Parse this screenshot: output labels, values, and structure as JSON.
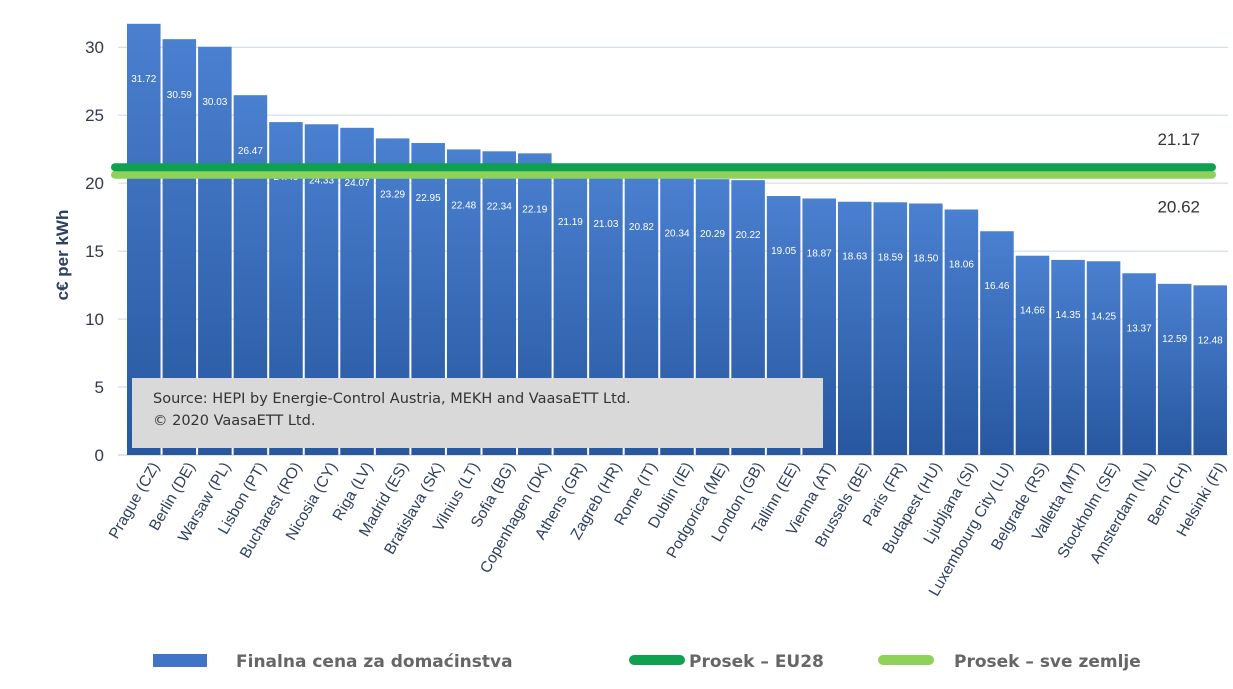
{
  "chart_data": {
    "type": "bar",
    "ylabel": "c€ per kWh",
    "ylim": [
      0,
      32
    ],
    "yticks": [
      0,
      5,
      10,
      15,
      20,
      25,
      30
    ],
    "grid": true,
    "categories": [
      "Prague (CZ)",
      "Berlin (DE)",
      "Warsaw (PL)",
      "Lisbon (PT)",
      "Bucharest (RO)",
      "Nicosia (CY)",
      "Riga (LV)",
      "Madrid (ES)",
      "Bratislava (SK)",
      "Vilnius (LT)",
      "Sofia (BG)",
      "Copenhagen (DK)",
      "Athens (GR)",
      "Zagreb (HR)",
      "Rome (IT)",
      "Dublin (IE)",
      "Podgorica (ME)",
      "London (GB)",
      "Tallinn (EE)",
      "Vienna (AT)",
      "Brussels (BE)",
      "Paris (FR)",
      "Budapest (HU)",
      "Ljubljana (SI)",
      "Luxembourg City (LU)",
      "Belgrade (RS)",
      "Valletta (MT)",
      "Stockholm (SE)",
      "Amsterdam (NL)",
      "Bern (CH)",
      "Helsinki (FI)"
    ],
    "series": [
      {
        "name": "Finalna cena za domaćinstva",
        "color": "#3f74c6",
        "values": [
          31.72,
          30.59,
          30.03,
          26.47,
          24.49,
          24.33,
          24.07,
          23.29,
          22.95,
          22.48,
          22.34,
          22.19,
          21.19,
          21.03,
          20.82,
          20.34,
          20.29,
          20.22,
          19.05,
          18.87,
          18.63,
          18.59,
          18.5,
          18.06,
          16.46,
          14.66,
          14.35,
          14.25,
          13.37,
          12.59,
          12.48
        ],
        "data_labels": [
          "31.72",
          "30.59",
          "30.03",
          "26.47",
          "24.49",
          "24.33",
          "24.07",
          "23.29",
          "22.95",
          "22.48",
          "22.34",
          "22.19",
          "21.19",
          "21.03",
          "20.82",
          "20.34",
          "20.29",
          "20.22",
          "19.05",
          "18.87",
          "18.63",
          "18.59",
          "18.50",
          "18.06",
          "16.46",
          "14.66",
          "14.35",
          "14.25",
          "13.37",
          "12.59",
          "12.48"
        ]
      }
    ],
    "reference_lines": [
      {
        "name": "Prosek – EU28",
        "value": 21.17,
        "label": "21.17",
        "color": "#0ea150"
      },
      {
        "name": "Prosek – sve zemlje",
        "value": 20.62,
        "label": "20.62",
        "color": "#8ed15b"
      }
    ],
    "annotation": {
      "line1": "Source: HEPI by Energie-Control Austria, MEKH and VaasaETT Ltd.",
      "line2": "© 2020 VaasaETT Ltd."
    },
    "legend": {
      "position": "bottom",
      "items": [
        {
          "label": "Finalna cena za domaćinstva",
          "color": "#3f74c6"
        },
        {
          "label": "Prosek – EU28",
          "color": "#0ea150"
        },
        {
          "label": "Prosek – sve zemlje",
          "color": "#8ed15b"
        }
      ]
    }
  }
}
